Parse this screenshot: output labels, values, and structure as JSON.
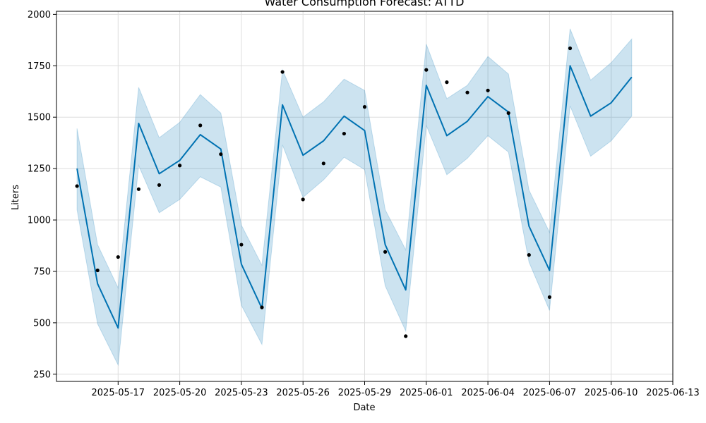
{
  "chart_data": {
    "type": "line",
    "title": "Water Consumption Forecast: ATTD",
    "xlabel": "Date",
    "ylabel": "Liters",
    "grid": true,
    "xlim": [
      "2025-05-14",
      "2025-06-13"
    ],
    "ylim": [
      215,
      2015
    ],
    "x_ticks": [
      "2025-05-17",
      "2025-05-20",
      "2025-05-23",
      "2025-05-26",
      "2025-05-29",
      "2025-06-01",
      "2025-06-04",
      "2025-06-07",
      "2025-06-10",
      "2025-06-13"
    ],
    "y_ticks": [
      250,
      500,
      750,
      1000,
      1250,
      1500,
      1750,
      2000
    ],
    "colors": {
      "forecast": "#0072B2",
      "band": "#0072B2",
      "observed": "#000000",
      "grid": "#dddddd"
    },
    "x": [
      "2025-05-15",
      "2025-05-16",
      "2025-05-17",
      "2025-05-18",
      "2025-05-19",
      "2025-05-20",
      "2025-05-21",
      "2025-05-22",
      "2025-05-23",
      "2025-05-24",
      "2025-05-25",
      "2025-05-26",
      "2025-05-27",
      "2025-05-28",
      "2025-05-29",
      "2025-05-30",
      "2025-05-31",
      "2025-06-01",
      "2025-06-02",
      "2025-06-03",
      "2025-06-04",
      "2025-06-05",
      "2025-06-06",
      "2025-06-07",
      "2025-06-08",
      "2025-06-09",
      "2025-06-10",
      "2025-06-11",
      "2025-06-12"
    ],
    "series": [
      {
        "type": "line",
        "values": [
          1250,
          690,
          475,
          1470,
          1225,
          1290,
          1415,
          1345,
          785,
          570,
          1560,
          1315,
          1385,
          1505,
          1435,
          880,
          660,
          1655,
          1410,
          1480,
          1600,
          1525,
          970,
          755,
          1750,
          1505,
          1570,
          1695,
          null
        ]
      },
      {
        "type": "band",
        "upper": [
          1445,
          880,
          670,
          1645,
          1400,
          1475,
          1610,
          1520,
          975,
          780,
          1730,
          1500,
          1575,
          1685,
          1630,
          1050,
          855,
          1855,
          1590,
          1655,
          1795,
          1710,
          1145,
          940,
          1930,
          1680,
          1765,
          1880,
          null
        ],
        "lower": [
          1050,
          495,
          295,
          1265,
          1035,
          1100,
          1210,
          1160,
          585,
          395,
          1365,
          1110,
          1195,
          1305,
          1245,
          680,
          460,
          1460,
          1220,
          1300,
          1410,
          1330,
          795,
          560,
          1555,
          1310,
          1385,
          1505,
          null
        ]
      },
      {
        "type": "scatter",
        "values": [
          1165,
          755,
          820,
          1150,
          1170,
          1265,
          1460,
          1320,
          880,
          575,
          1720,
          1100,
          1275,
          1420,
          1550,
          845,
          435,
          1730,
          1670,
          1620,
          1630,
          1520,
          830,
          625,
          1835,
          null,
          null,
          null,
          null
        ]
      }
    ]
  }
}
